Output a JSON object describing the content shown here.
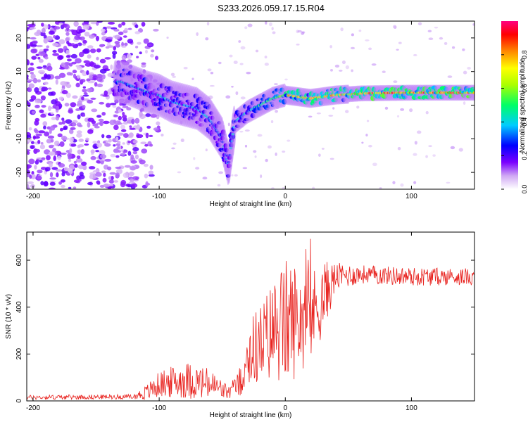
{
  "title": "S233.2026.059.17.15.R04",
  "chart_data": [
    {
      "type": "heatmap",
      "xlabel": "Height of straight line (km)",
      "ylabel": "Frequency (Hz)",
      "xlim": [
        -205,
        150
      ],
      "ylim": [
        -25,
        25
      ],
      "xticks": [
        -200,
        -100,
        0,
        100
      ],
      "yticks": [
        -20,
        -10,
        0,
        10,
        20
      ],
      "colorbar": {
        "label": "Normalized spectral amplitude",
        "range": [
          0.0,
          1.0
        ],
        "ticks": [
          "0.0",
          "0.2",
          "0.4",
          "0.6",
          "0.8"
        ],
        "colormap": [
          "#ffffff",
          "#c8a0f0",
          "#6600ff",
          "#0000ff",
          "#00ccff",
          "#00ff66",
          "#aaff00",
          "#ffff00",
          "#ff8800",
          "#ff0000",
          "#ff0080"
        ]
      },
      "ridge": {
        "description": "frequency centroid vs height",
        "points": [
          {
            "x": -130,
            "y": 7
          },
          {
            "x": -110,
            "y": 4
          },
          {
            "x": -100,
            "y": 3
          },
          {
            "x": -90,
            "y": 1
          },
          {
            "x": -80,
            "y": 0
          },
          {
            "x": -70,
            "y": -1
          },
          {
            "x": -60,
            "y": -4
          },
          {
            "x": -50,
            "y": -10
          },
          {
            "x": -45,
            "y": -18
          },
          {
            "x": -40,
            "y": -5
          },
          {
            "x": -30,
            "y": -2
          },
          {
            "x": -20,
            "y": 0
          },
          {
            "x": -10,
            "y": 2
          },
          {
            "x": 0,
            "y": 3
          },
          {
            "x": 20,
            "y": 2
          },
          {
            "x": 40,
            "y": 3
          },
          {
            "x": 60,
            "y": 3.5
          },
          {
            "x": 80,
            "y": 3.6
          },
          {
            "x": 100,
            "y": 3.7
          },
          {
            "x": 120,
            "y": 3.7
          },
          {
            "x": 150,
            "y": 3.7
          }
        ]
      }
    },
    {
      "type": "line",
      "xlabel": "Height of straight line (km)",
      "ylabel": "SNR (10 * v/v)",
      "xlim": [
        -205,
        150
      ],
      "ylim": [
        0,
        720
      ],
      "xticks": [
        -200,
        -100,
        0,
        100
      ],
      "yticks": [
        0,
        200,
        400,
        600
      ],
      "series": [
        {
          "name": "SNR",
          "color": "#e8201c",
          "envelope": [
            {
              "x": -205,
              "mean": 15,
              "amp": 10
            },
            {
              "x": -120,
              "mean": 18,
              "amp": 10
            },
            {
              "x": -110,
              "mean": 35,
              "amp": 35
            },
            {
              "x": -100,
              "mean": 70,
              "amp": 55
            },
            {
              "x": -80,
              "mean": 90,
              "amp": 80
            },
            {
              "x": -60,
              "mean": 70,
              "amp": 70
            },
            {
              "x": -45,
              "mean": 35,
              "amp": 30
            },
            {
              "x": -35,
              "mean": 80,
              "amp": 60
            },
            {
              "x": -30,
              "mean": 200,
              "amp": 150
            },
            {
              "x": -20,
              "mean": 240,
              "amp": 170
            },
            {
              "x": -10,
              "mean": 300,
              "amp": 220
            },
            {
              "x": 0,
              "mean": 330,
              "amp": 280
            },
            {
              "x": 10,
              "mean": 350,
              "amp": 240
            },
            {
              "x": 20,
              "mean": 360,
              "amp": 200
            },
            {
              "x": 30,
              "mean": 440,
              "amp": 160
            },
            {
              "x": 40,
              "mean": 530,
              "amp": 60
            },
            {
              "x": 60,
              "mean": 540,
              "amp": 40
            },
            {
              "x": 100,
              "mean": 530,
              "amp": 40
            },
            {
              "x": 150,
              "mean": 530,
              "amp": 35
            }
          ]
        }
      ]
    }
  ]
}
